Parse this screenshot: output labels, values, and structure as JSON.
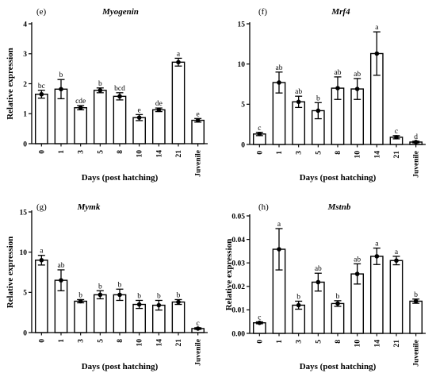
{
  "chart_data": [
    {
      "type": "bar",
      "panel": "(e)",
      "title": "Myogenin",
      "ylabel": "Relative expression",
      "xlabel": "Days (post hatching)",
      "ylim": [
        0,
        4
      ],
      "yticks": [
        "0",
        "1",
        "2",
        "3",
        "4"
      ],
      "categories": [
        "0",
        "1",
        "3",
        "5",
        "8",
        "10",
        "14",
        "21",
        "Juvenile"
      ],
      "values": [
        1.65,
        1.82,
        1.2,
        1.78,
        1.58,
        0.87,
        1.13,
        2.72,
        0.78
      ],
      "errors": [
        0.13,
        0.32,
        0.07,
        0.08,
        0.12,
        0.1,
        0.06,
        0.13,
        0.06
      ],
      "letters": [
        "bc",
        "b",
        "cde",
        "b",
        "bcd",
        "e",
        "de",
        "a",
        "e"
      ]
    },
    {
      "type": "bar",
      "panel": "(f)",
      "title": "Mrf4",
      "ylabel": "",
      "xlabel": "Days (post hatching)",
      "ylim": [
        0,
        15
      ],
      "yticks": [
        "0",
        "5",
        "10",
        "15"
      ],
      "categories": [
        "0",
        "1",
        "3",
        "5",
        "8",
        "10",
        "14",
        "21",
        "Juvenile"
      ],
      "values": [
        1.3,
        7.7,
        5.3,
        4.2,
        7.0,
        6.9,
        11.3,
        0.9,
        0.3
      ],
      "errors": [
        0.2,
        1.3,
        0.7,
        1.0,
        1.4,
        1.3,
        2.7,
        0.2,
        0.1
      ],
      "letters": [
        "c",
        "ab",
        "ab",
        "b",
        "ab",
        "ab",
        "a",
        "c",
        "d"
      ]
    },
    {
      "type": "bar",
      "panel": "(g)",
      "title": "Mymk",
      "ylabel": "Relative expression",
      "xlabel": "Days (post hatching)",
      "ylim": [
        0,
        15
      ],
      "yticks": [
        "0",
        "5",
        "10",
        "15"
      ],
      "categories": [
        "0",
        "1",
        "3",
        "5",
        "8",
        "10",
        "14",
        "21",
        "Juvenile"
      ],
      "values": [
        9.0,
        6.5,
        3.9,
        4.7,
        4.7,
        3.5,
        3.4,
        3.8,
        0.5
      ],
      "errors": [
        0.6,
        1.3,
        0.2,
        0.5,
        0.7,
        0.5,
        0.6,
        0.3,
        0.1
      ],
      "letters": [
        "a",
        "ab",
        "b",
        "b",
        "b",
        "b",
        "b",
        "b",
        "c"
      ]
    },
    {
      "type": "bar",
      "panel": "(h)",
      "title": "Mstnb",
      "ylabel": "Relative expression",
      "xlabel": "Days (post hatching)",
      "ylim": [
        0,
        0.05
      ],
      "yticks": [
        "0.00",
        "0.01",
        "0.02",
        "0.03",
        "0.04",
        "0.05"
      ],
      "categories": [
        "0",
        "1",
        "3",
        "5",
        "8",
        "10",
        "14",
        "21",
        "Juvenile"
      ],
      "values": [
        0.0045,
        0.0358,
        0.012,
        0.0218,
        0.0127,
        0.0253,
        0.0328,
        0.031,
        0.0137
      ],
      "errors": [
        0.0004,
        0.0088,
        0.0017,
        0.0038,
        0.0012,
        0.0043,
        0.0035,
        0.0018,
        0.0009
      ],
      "letters": [
        "c",
        "a",
        "b",
        "ab",
        "b",
        "ab",
        "a",
        "a",
        "b"
      ]
    }
  ]
}
